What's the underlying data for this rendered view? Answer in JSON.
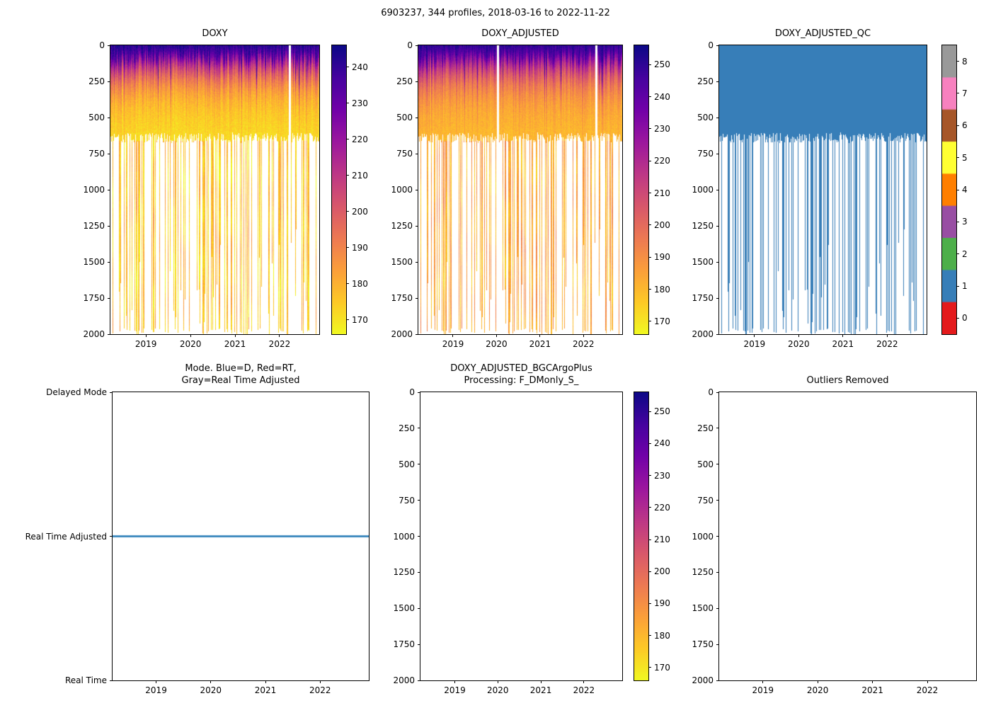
{
  "figure": {
    "title": "6903237, 344 profiles, 2018-03-16 to 2022-11-22",
    "float_id": "6903237",
    "n_profiles": 344,
    "date_start": "2018-03-16",
    "date_end": "2022-11-22"
  },
  "chart_data": [
    {
      "id": "doxy",
      "type": "heatmap",
      "title": "DOXY",
      "n_profiles": 344,
      "date_range": [
        "2018-03-16",
        "2022-11-22"
      ],
      "x_tick_labels": [
        "2019",
        "2020",
        "2021",
        "2022"
      ],
      "y_tick_labels": [
        0,
        250,
        500,
        750,
        1000,
        1250,
        1500,
        1750,
        2000
      ],
      "ylim": [
        2000,
        0
      ],
      "colormap": "plasma_high_values_dark",
      "vmin": 166,
      "vmax": 246,
      "colorbar_ticks": [
        170,
        180,
        190,
        200,
        210,
        220,
        230,
        240
      ],
      "field_summary": {
        "depths_m": [
          0,
          50,
          100,
          200,
          300,
          400,
          500,
          650
        ],
        "typical_values": [
          243,
          236,
          215,
          196,
          184,
          177,
          172,
          170
        ],
        "deep_values_range": [
          170,
          186
        ],
        "common_max_depth_m": 650,
        "deep_profile_fraction": 0.3,
        "deep_max_depth_m": 2000
      },
      "gaps": [
        0.858
      ]
    },
    {
      "id": "doxy_adjusted",
      "type": "heatmap",
      "title": "DOXY_ADJUSTED",
      "n_profiles": 344,
      "date_range": [
        "2018-03-16",
        "2022-11-22"
      ],
      "x_tick_labels": [
        "2019",
        "2020",
        "2021",
        "2022"
      ],
      "y_tick_labels": [
        0,
        250,
        500,
        750,
        1000,
        1250,
        1500,
        1750,
        2000
      ],
      "ylim": [
        2000,
        0
      ],
      "colormap": "plasma_high_values_dark",
      "vmin": 166,
      "vmax": 256,
      "value_offset": 8,
      "colorbar_ticks": [
        170,
        180,
        190,
        200,
        210,
        220,
        230,
        240,
        250
      ],
      "field_summary": {
        "depths_m": [
          0,
          50,
          100,
          200,
          300,
          400,
          500,
          650
        ],
        "typical_values": [
          251,
          244,
          223,
          204,
          192,
          185,
          180,
          178
        ],
        "deep_values_range": [
          178,
          194
        ],
        "common_max_depth_m": 650,
        "deep_profile_fraction": 0.3,
        "deep_max_depth_m": 2000
      },
      "gaps": [
        0.392,
        0.873
      ]
    },
    {
      "id": "qc",
      "type": "heatmap",
      "title": "DOXY_ADJUSTED_QC",
      "n_profiles": 344,
      "date_range": [
        "2018-03-16",
        "2022-11-22"
      ],
      "x_tick_labels": [
        "2019",
        "2020",
        "2021",
        "2022"
      ],
      "y_tick_labels": [
        0,
        250,
        500,
        750,
        1000,
        1250,
        1500,
        1750,
        2000
      ],
      "ylim": [
        2000,
        0
      ],
      "uniform_value": 1,
      "value_color": "#377eb8",
      "colorbar_ticks": [
        0,
        1,
        2,
        3,
        4,
        5,
        6,
        7,
        8
      ],
      "colorbar_colors": [
        "#e41a1c",
        "#377eb8",
        "#4daf4a",
        "#984ea3",
        "#ff7f00",
        "#ffff33",
        "#a65628",
        "#f781bf",
        "#999999"
      ],
      "field_summary": {
        "qc_flag_everywhere": 1,
        "common_max_depth_m": 650,
        "deep_profile_fraction": 0.3,
        "deep_max_depth_m": 2000
      }
    },
    {
      "id": "mode",
      "type": "line",
      "title": "Mode. Blue=D, Red=RT,\nGray=Real Time Adjusted",
      "y_categories": [
        "Delayed Mode",
        "Real Time Adjusted",
        "Real Time"
      ],
      "line_value": "Real Time Adjusted",
      "line_color": "#1f77b4",
      "x_tick_labels": [
        "2019",
        "2020",
        "2021",
        "2022"
      ],
      "date_range": [
        "2018-03-16",
        "2022-11-22"
      ]
    },
    {
      "id": "bgc",
      "type": "heatmap",
      "title": "DOXY_ADJUSTED_BGCArgoPlus\nProcessing: F_DMonly_S_",
      "empty": true,
      "n_points": 0,
      "date_range": [
        "2018-03-16",
        "2022-11-22"
      ],
      "x_tick_labels": [
        "2019",
        "2020",
        "2021",
        "2022"
      ],
      "y_tick_labels": [
        0,
        250,
        500,
        750,
        1000,
        1250,
        1500,
        1750,
        2000
      ],
      "ylim": [
        2000,
        0
      ],
      "colormap": "plasma_high_values_dark",
      "vmin": 166,
      "vmax": 256,
      "colorbar_ticks": [
        170,
        180,
        190,
        200,
        210,
        220,
        230,
        240,
        250
      ]
    },
    {
      "id": "outliers",
      "type": "heatmap",
      "title": "Outliers Removed",
      "empty": true,
      "n_points": 0,
      "date_range": [
        "2018-03-16",
        "2022-11-22"
      ],
      "x_tick_labels": [
        "2019",
        "2020",
        "2021",
        "2022"
      ],
      "y_tick_labels": [
        0,
        250,
        500,
        750,
        1000,
        1250,
        1500,
        1750,
        2000
      ],
      "ylim": [
        2000,
        0
      ]
    }
  ]
}
